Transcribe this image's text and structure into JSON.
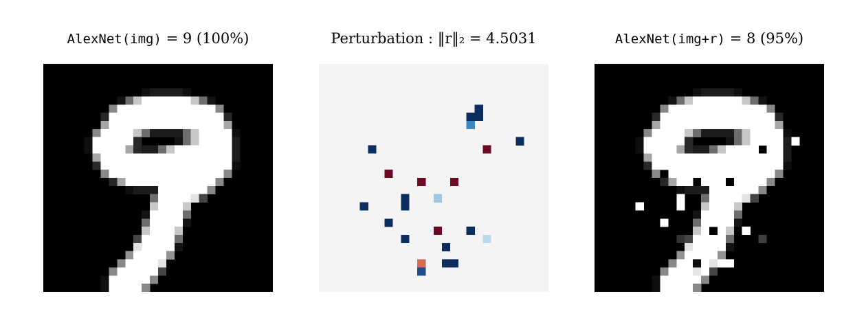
{
  "panels": [
    {
      "id": "original",
      "title": {
        "model": "AlexNet(img)",
        "eq": " = ",
        "label": "9",
        "conf": " (100%)"
      },
      "background": "#000000"
    },
    {
      "id": "perturbation",
      "title": {
        "prefix": "Perturbation : ",
        "norm": "‖r‖₂ = 4.5031"
      },
      "background": "#f4f4f4"
    },
    {
      "id": "adversarial",
      "title": {
        "model": "AlexNet(img+r)",
        "eq": " = ",
        "label": "8",
        "conf": " (95%)"
      },
      "background": "#000000"
    }
  ],
  "image_grid": 28,
  "digit": {
    "strokes": [
      [
        [
          9,
          9
        ],
        [
          10,
          7
        ],
        [
          13,
          6
        ],
        [
          17,
          6
        ],
        [
          20,
          7
        ],
        [
          21,
          9
        ],
        [
          20,
          11
        ],
        [
          17,
          12
        ],
        [
          14,
          13
        ],
        [
          11,
          13
        ],
        [
          9,
          12
        ],
        [
          8,
          10
        ],
        [
          9,
          9
        ]
      ],
      [
        [
          21,
          9
        ],
        [
          21,
          12
        ],
        [
          19,
          14
        ],
        [
          16,
          16
        ],
        [
          15,
          19
        ],
        [
          14,
          22
        ],
        [
          12,
          25
        ],
        [
          10,
          27
        ]
      ]
    ],
    "color": "#ffffff"
  },
  "perturbation_pixels": [
    {
      "x": 19,
      "y": 5,
      "color": "#0b2e5e"
    },
    {
      "x": 18,
      "y": 6,
      "color": "#0b2e5e"
    },
    {
      "x": 19,
      "y": 6,
      "color": "#0b2e5e"
    },
    {
      "x": 18,
      "y": 7,
      "color": "#3f86c0"
    },
    {
      "x": 24,
      "y": 9,
      "color": "#0b2e5e"
    },
    {
      "x": 6,
      "y": 10,
      "color": "#0b2e5e"
    },
    {
      "x": 20,
      "y": 10,
      "color": "#6b0a22"
    },
    {
      "x": 8,
      "y": 13,
      "color": "#6b0a22"
    },
    {
      "x": 12,
      "y": 14,
      "color": "#6b0a22"
    },
    {
      "x": 16,
      "y": 14,
      "color": "#6b0a22"
    },
    {
      "x": 10,
      "y": 16,
      "color": "#0b2e5e"
    },
    {
      "x": 14,
      "y": 16,
      "color": "#9dc7e2"
    },
    {
      "x": 5,
      "y": 17,
      "color": "#0b2e5e"
    },
    {
      "x": 10,
      "y": 17,
      "color": "#0b2e5e"
    },
    {
      "x": 8,
      "y": 19,
      "color": "#0b2e5e"
    },
    {
      "x": 14,
      "y": 20,
      "color": "#6b0a22"
    },
    {
      "x": 18,
      "y": 20,
      "color": "#0b2e5e"
    },
    {
      "x": 10,
      "y": 21,
      "color": "#0b2e5e"
    },
    {
      "x": 20,
      "y": 21,
      "color": "#bcd9eb"
    },
    {
      "x": 15,
      "y": 22,
      "color": "#0b2e5e"
    },
    {
      "x": 12,
      "y": 24,
      "color": "#d96b52"
    },
    {
      "x": 15,
      "y": 24,
      "color": "#0b2e5e"
    },
    {
      "x": 16,
      "y": 24,
      "color": "#0b2e5e"
    },
    {
      "x": 12,
      "y": 25,
      "color": "#1e4d8a"
    }
  ],
  "adversarial_changes": [
    {
      "x": 19,
      "y": 5,
      "v": 1
    },
    {
      "x": 18,
      "y": 6,
      "v": 1
    },
    {
      "x": 19,
      "y": 6,
      "v": 1
    },
    {
      "x": 24,
      "y": 9,
      "v": 1
    },
    {
      "x": 6,
      "y": 10,
      "v": 1
    },
    {
      "x": 20,
      "y": 10,
      "v": 0
    },
    {
      "x": 8,
      "y": 13,
      "v": 0
    },
    {
      "x": 12,
      "y": 14,
      "v": 0
    },
    {
      "x": 16,
      "y": 14,
      "v": 0
    },
    {
      "x": 10,
      "y": 16,
      "v": 1
    },
    {
      "x": 5,
      "y": 17,
      "v": 1
    },
    {
      "x": 10,
      "y": 17,
      "v": 1
    },
    {
      "x": 8,
      "y": 19,
      "v": 1
    },
    {
      "x": 14,
      "y": 20,
      "v": 0
    },
    {
      "x": 18,
      "y": 20,
      "v": 1
    },
    {
      "x": 10,
      "y": 21,
      "v": 0.2
    },
    {
      "x": 20,
      "y": 21,
      "v": 0.25
    },
    {
      "x": 15,
      "y": 22,
      "v": 1
    },
    {
      "x": 12,
      "y": 24,
      "v": 0.05
    },
    {
      "x": 15,
      "y": 24,
      "v": 1
    },
    {
      "x": 16,
      "y": 24,
      "v": 1
    },
    {
      "x": 12,
      "y": 25,
      "v": 0.9
    }
  ]
}
